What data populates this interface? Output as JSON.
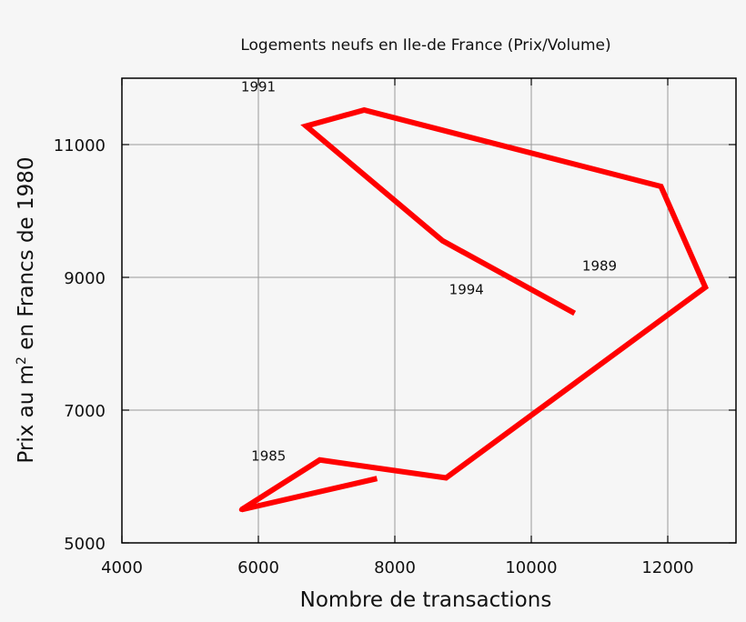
{
  "chart_data": {
    "type": "line",
    "title": "Logements neufs en Ile-de France (Prix/Volume)",
    "xlabel": "Nombre de transactions",
    "ylabel_parts": [
      "Prix au m",
      "2",
      " en Francs de 1980"
    ],
    "xlim": [
      4000,
      13000
    ],
    "ylim": [
      5000,
      12000
    ],
    "xticks": [
      4000,
      6000,
      8000,
      10000,
      12000
    ],
    "yticks": [
      5000,
      7000,
      9000,
      11000
    ],
    "grid": true,
    "series": [
      {
        "color": "#ff0000",
        "points": [
          {
            "x": 7700,
            "y": 5960
          },
          {
            "x": 5750,
            "y": 5500
          },
          {
            "x": 6900,
            "y": 6250
          },
          {
            "x": 8750,
            "y": 5980
          },
          {
            "x": 12550,
            "y": 8850
          },
          {
            "x": 11900,
            "y": 10370
          },
          {
            "x": 7550,
            "y": 11520
          },
          {
            "x": 6700,
            "y": 11280
          },
          {
            "x": 8700,
            "y": 9550
          },
          {
            "x": 10600,
            "y": 8480
          }
        ]
      }
    ],
    "annotations": [
      {
        "text": "1985",
        "x": 6150,
        "y": 6240
      },
      {
        "text": "1989",
        "x": 11000,
        "y": 9100
      },
      {
        "text": "1991",
        "x": 6000,
        "y": 11800
      },
      {
        "text": "1994",
        "x": 9050,
        "y": 8750
      }
    ]
  }
}
